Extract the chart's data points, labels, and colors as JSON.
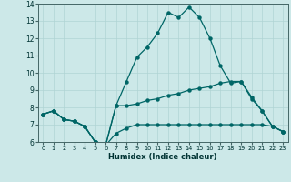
{
  "xlabel": "Humidex (Indice chaleur)",
  "bg_color": "#cce8e8",
  "grid_color": "#b0d4d4",
  "line_color": "#006666",
  "xlim": [
    -0.5,
    23.5
  ],
  "ylim": [
    6,
    14
  ],
  "yticks": [
    6,
    7,
    8,
    9,
    10,
    11,
    12,
    13,
    14
  ],
  "xticks": [
    0,
    1,
    2,
    3,
    4,
    5,
    6,
    7,
    8,
    9,
    10,
    11,
    12,
    13,
    14,
    15,
    16,
    17,
    18,
    19,
    20,
    21,
    22,
    23
  ],
  "series_top_x": [
    0,
    1,
    2,
    3,
    4,
    5,
    6,
    7,
    8,
    9,
    10,
    11,
    12,
    13,
    14,
    15,
    16,
    17,
    18,
    19,
    20,
    21,
    22,
    23
  ],
  "series_top_y": [
    7.6,
    7.8,
    7.3,
    7.2,
    6.9,
    6.0,
    5.8,
    8.1,
    9.5,
    10.9,
    11.5,
    12.3,
    13.5,
    13.2,
    13.8,
    13.2,
    12.0,
    10.4,
    9.4,
    9.5,
    8.6,
    7.8,
    6.9,
    6.6
  ],
  "series_mid_x": [
    0,
    1,
    2,
    3,
    4,
    5,
    6,
    7,
    8,
    9,
    10,
    11,
    12,
    13,
    14,
    15,
    16,
    17,
    18,
    19,
    20,
    21,
    22,
    23
  ],
  "series_mid_y": [
    7.6,
    7.8,
    7.3,
    7.2,
    6.9,
    6.0,
    5.8,
    8.1,
    8.1,
    8.2,
    8.4,
    8.5,
    8.7,
    8.8,
    9.0,
    9.1,
    9.2,
    9.4,
    9.5,
    9.5,
    8.5,
    7.8,
    6.9,
    6.6
  ],
  "series_bot_x": [
    0,
    1,
    2,
    3,
    4,
    5,
    6,
    7,
    8,
    9,
    10,
    11,
    12,
    13,
    14,
    15,
    16,
    17,
    18,
    19,
    20,
    21,
    22,
    23
  ],
  "series_bot_y": [
    7.6,
    7.8,
    7.3,
    7.2,
    6.9,
    6.0,
    5.8,
    6.5,
    6.8,
    7.0,
    7.0,
    7.0,
    7.0,
    7.0,
    7.0,
    7.0,
    7.0,
    7.0,
    7.0,
    7.0,
    7.0,
    7.0,
    6.9,
    6.6
  ]
}
